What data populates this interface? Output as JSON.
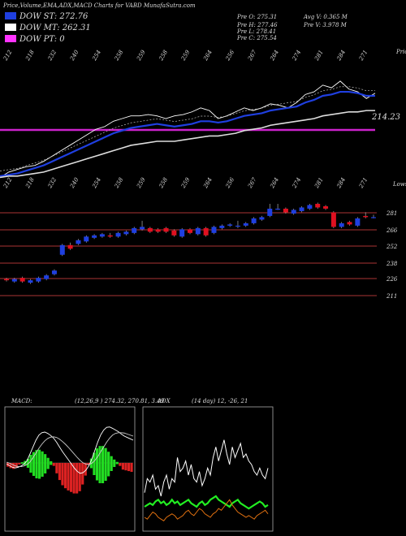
{
  "header": {
    "title": "Price,Volume,EMA,ADX,MACD Charts for VABD MunafaSutra.com",
    "legend": [
      {
        "label": "DOW ST: 272.76",
        "color": "#1f3fe0"
      },
      {
        "label": "DOW MT: 262.31",
        "color": "#ffffff"
      },
      {
        "label": "DOW PT: 0",
        "color": "#ff33ff"
      }
    ],
    "ohlc_col1": [
      "Pre O: 275.31",
      "Pre H: 277.46",
      "Pre L: 278.41",
      "Pre C: 275.54"
    ],
    "ohlc_col2": [
      "Avg V: 0.365 M",
      "Pre V: 3.978 M"
    ]
  },
  "colors": {
    "up": "#1f3fe0",
    "down": "#e01020",
    "ema_short": "#1f3fe0",
    "pt_line": "#cc22cc",
    "grid": "#a33",
    "macd_hist": "#22dd22",
    "macd_neg": "#dd2222",
    "adx_pos": "#22ee22",
    "adx_neg": "#e07010"
  },
  "chart_data": [
    {
      "type": "line",
      "name": "upper-ema-panel",
      "top_tick_labels": [
        "212",
        "218",
        "232",
        "240",
        "254",
        "258",
        "259",
        "258",
        "259",
        "264",
        "256",
        "267",
        "264",
        "274",
        "281",
        "284",
        "271"
      ],
      "corner_label_right": "Price",
      "level_label": "214.23",
      "series": [
        {
          "name": "Close",
          "values": [
            212,
            216,
            218,
            220,
            221,
            224,
            228,
            232,
            236,
            240,
            244,
            248,
            250,
            254,
            256,
            258,
            258,
            259,
            258,
            256,
            258,
            259,
            261,
            264,
            262,
            256,
            258,
            261,
            264,
            262,
            264,
            267,
            266,
            264,
            268,
            274,
            276,
            281,
            279,
            284,
            278,
            276,
            271,
            275
          ]
        },
        {
          "name": "DOW ST",
          "values": [
            213,
            214,
            215,
            217,
            219,
            221,
            224,
            227,
            230,
            233,
            236,
            239,
            242,
            245,
            247,
            249,
            250,
            251,
            252,
            251,
            250,
            251,
            252,
            254,
            254,
            253,
            254,
            256,
            258,
            259,
            260,
            262,
            263,
            264,
            265,
            268,
            270,
            273,
            274,
            276,
            276,
            275,
            273,
            273
          ]
        },
        {
          "name": "DOW MT",
          "values": [
            212,
            213,
            213,
            214,
            215,
            216,
            218,
            220,
            222,
            224,
            226,
            228,
            230,
            232,
            234,
            236,
            237,
            238,
            239,
            239,
            239,
            240,
            241,
            242,
            243,
            243,
            244,
            245,
            247,
            248,
            249,
            251,
            252,
            253,
            254,
            255,
            256,
            258,
            259,
            260,
            261,
            261,
            262,
            262
          ]
        }
      ]
    },
    {
      "type": "bar",
      "name": "candlestick-panel",
      "top_tick_labels": [
        "212",
        "218",
        "232",
        "240",
        "254",
        "258",
        "259",
        "258",
        "259",
        "264",
        "256",
        "267",
        "264",
        "274",
        "281",
        "284",
        "271"
      ],
      "corner_label_right": "Lows",
      "y_tick_labels": [
        "281",
        "266",
        "252",
        "238",
        "226",
        "211"
      ],
      "ylim": [
        205,
        290
      ],
      "candles": [
        {
          "o": 224,
          "c": 223,
          "h": 225,
          "l": 222
        },
        {
          "o": 222,
          "c": 224,
          "h": 225,
          "l": 221
        },
        {
          "o": 225,
          "c": 222,
          "h": 226,
          "l": 221
        },
        {
          "o": 221,
          "c": 223,
          "h": 224,
          "l": 220
        },
        {
          "o": 222,
          "c": 225,
          "h": 226,
          "l": 221
        },
        {
          "o": 224,
          "c": 227,
          "h": 228,
          "l": 223
        },
        {
          "o": 228,
          "c": 231,
          "h": 232,
          "l": 227
        },
        {
          "o": 244,
          "c": 252,
          "h": 253,
          "l": 243
        },
        {
          "o": 252,
          "c": 249,
          "h": 254,
          "l": 248
        },
        {
          "o": 253,
          "c": 256,
          "h": 257,
          "l": 252
        },
        {
          "o": 255,
          "c": 259,
          "h": 260,
          "l": 254
        },
        {
          "o": 258,
          "c": 260,
          "h": 261,
          "l": 257
        },
        {
          "o": 259,
          "c": 261,
          "h": 262,
          "l": 258
        },
        {
          "o": 260,
          "c": 259,
          "h": 262,
          "l": 258
        },
        {
          "o": 259,
          "c": 262,
          "h": 263,
          "l": 258
        },
        {
          "o": 261,
          "c": 263,
          "h": 264,
          "l": 260
        },
        {
          "o": 262,
          "c": 266,
          "h": 267,
          "l": 261
        },
        {
          "o": 265,
          "c": 267,
          "h": 272,
          "l": 264
        },
        {
          "o": 266,
          "c": 263,
          "h": 267,
          "l": 262
        },
        {
          "o": 265,
          "c": 263,
          "h": 266,
          "l": 262
        },
        {
          "o": 266,
          "c": 263,
          "h": 267,
          "l": 262
        },
        {
          "o": 264,
          "c": 260,
          "h": 265,
          "l": 259
        },
        {
          "o": 259,
          "c": 265,
          "h": 266,
          "l": 258
        },
        {
          "o": 265,
          "c": 262,
          "h": 266,
          "l": 261
        },
        {
          "o": 261,
          "c": 266,
          "h": 267,
          "l": 260
        },
        {
          "o": 266,
          "c": 260,
          "h": 267,
          "l": 259
        },
        {
          "o": 262,
          "c": 267,
          "h": 268,
          "l": 261
        },
        {
          "o": 266,
          "c": 268,
          "h": 269,
          "l": 265
        },
        {
          "o": 268,
          "c": 269,
          "h": 270,
          "l": 267
        },
        {
          "o": 268,
          "c": 268,
          "h": 272,
          "l": 266
        },
        {
          "o": 268,
          "c": 270,
          "h": 271,
          "l": 267
        },
        {
          "o": 270,
          "c": 274,
          "h": 275,
          "l": 269
        },
        {
          "o": 273,
          "c": 275,
          "h": 276,
          "l": 272
        },
        {
          "o": 276,
          "c": 282,
          "h": 286,
          "l": 275
        },
        {
          "o": 282,
          "c": 282,
          "h": 286,
          "l": 281
        },
        {
          "o": 282,
          "c": 279,
          "h": 283,
          "l": 278
        },
        {
          "o": 278,
          "c": 281,
          "h": 282,
          "l": 277
        },
        {
          "o": 280,
          "c": 283,
          "h": 284,
          "l": 279
        },
        {
          "o": 282,
          "c": 285,
          "h": 286,
          "l": 281
        },
        {
          "o": 286,
          "c": 283,
          "h": 287,
          "l": 282
        },
        {
          "o": 284,
          "c": 282,
          "h": 285,
          "l": 281
        },
        {
          "o": 279,
          "c": 267,
          "h": 280,
          "l": 266
        },
        {
          "o": 267,
          "c": 270,
          "h": 271,
          "l": 266
        },
        {
          "o": 271,
          "c": 269,
          "h": 272,
          "l": 268
        },
        {
          "o": 268,
          "c": 274,
          "h": 275,
          "l": 267
        },
        {
          "o": 276,
          "c": 275,
          "h": 279,
          "l": 274
        },
        {
          "o": 275,
          "c": 275,
          "h": 277,
          "l": 274
        }
      ]
    },
    {
      "type": "area",
      "name": "macd-panel",
      "label": "MACD:",
      "params": "(12,26,9 ) 274.32, 270.81, 3.49",
      "series": [
        {
          "name": "MACD",
          "values": [
            -1,
            -1.5,
            -2,
            -2.2,
            -2,
            -1.6,
            -1,
            0,
            2,
            4,
            6,
            7.5,
            8.2,
            8.4,
            8,
            7.4,
            6.6,
            5.4,
            4,
            2.6,
            1.4,
            0.2,
            -1,
            -2.2,
            -3.2,
            -3.8,
            -3.6,
            -2.8,
            -1.5,
            0.5,
            3,
            5.5,
            7.6,
            9,
            9.8,
            9.9,
            9.5,
            9,
            8.5,
            7.8,
            7.2,
            6.8,
            6.4,
            6
          ]
        },
        {
          "name": "Signal",
          "values": [
            -0.5,
            -0.8,
            -1.2,
            -1.6,
            -1.8,
            -1.8,
            -1.6,
            -1.2,
            -0.4,
            0.8,
            2.2,
            3.6,
            4.8,
            5.8,
            6.5,
            6.9,
            7,
            6.8,
            6.3,
            5.6,
            4.8,
            3.9,
            2.9,
            1.9,
            0.9,
            0,
            -0.7,
            -1.1,
            -1.2,
            -0.8,
            0,
            1.2,
            2.6,
            4,
            5.4,
            6.6,
            7.5,
            8,
            8.2,
            8.2,
            8.1,
            7.8,
            7.5,
            7.2
          ]
        },
        {
          "name": "Histogram",
          "values": [
            -0.5,
            -0.7,
            -0.8,
            -0.6,
            -0.2,
            0.2,
            0.6,
            1.2,
            2.4,
            3.2,
            3.8,
            3.9,
            3.4,
            2.6,
            1.5,
            0.5,
            -0.4,
            -1.4,
            -2.3,
            -3,
            -3.4,
            -3.7,
            -3.9,
            -4.1,
            -4.1,
            -3.8,
            -2.9,
            -1.7,
            -0.3,
            1.3,
            3,
            4.3,
            5,
            5,
            4.4,
            3.3,
            2,
            1,
            0.3,
            -0.4,
            -0.9,
            -1,
            -1.1,
            -1.2
          ]
        }
      ]
    },
    {
      "type": "line",
      "name": "adx-panel",
      "label": "ADX",
      "params": "(14 day) 12, -26, 21",
      "series": [
        {
          "name": "ADX",
          "values": [
            20,
            28,
            26,
            30,
            22,
            24,
            18,
            26,
            30,
            22,
            28,
            26,
            40,
            32,
            34,
            38,
            30,
            36,
            28,
            26,
            32,
            24,
            28,
            34,
            30,
            40,
            46,
            38,
            44,
            50,
            42,
            36,
            46,
            40,
            44,
            48,
            40,
            42,
            38,
            36,
            32,
            30,
            34,
            30,
            28,
            34
          ]
        },
        {
          "name": "+DI",
          "values": [
            12,
            13,
            14,
            13,
            15,
            16,
            14,
            15,
            13,
            14,
            16,
            14,
            15,
            13,
            14,
            15,
            16,
            14,
            13,
            12,
            14,
            15,
            13,
            14,
            16,
            17,
            18,
            16,
            15,
            14,
            13,
            12,
            14,
            15,
            16,
            14,
            13,
            12,
            11,
            12,
            13,
            14,
            15,
            14,
            12,
            13
          ]
        },
        {
          "name": "-DI",
          "values": [
            6,
            5,
            7,
            9,
            8,
            6,
            5,
            4,
            6,
            7,
            8,
            7,
            5,
            6,
            7,
            9,
            10,
            8,
            7,
            9,
            11,
            10,
            8,
            7,
            6,
            8,
            9,
            11,
            10,
            12,
            14,
            16,
            13,
            11,
            9,
            8,
            7,
            6,
            7,
            6,
            5,
            7,
            8,
            9,
            10,
            8
          ]
        }
      ]
    }
  ]
}
